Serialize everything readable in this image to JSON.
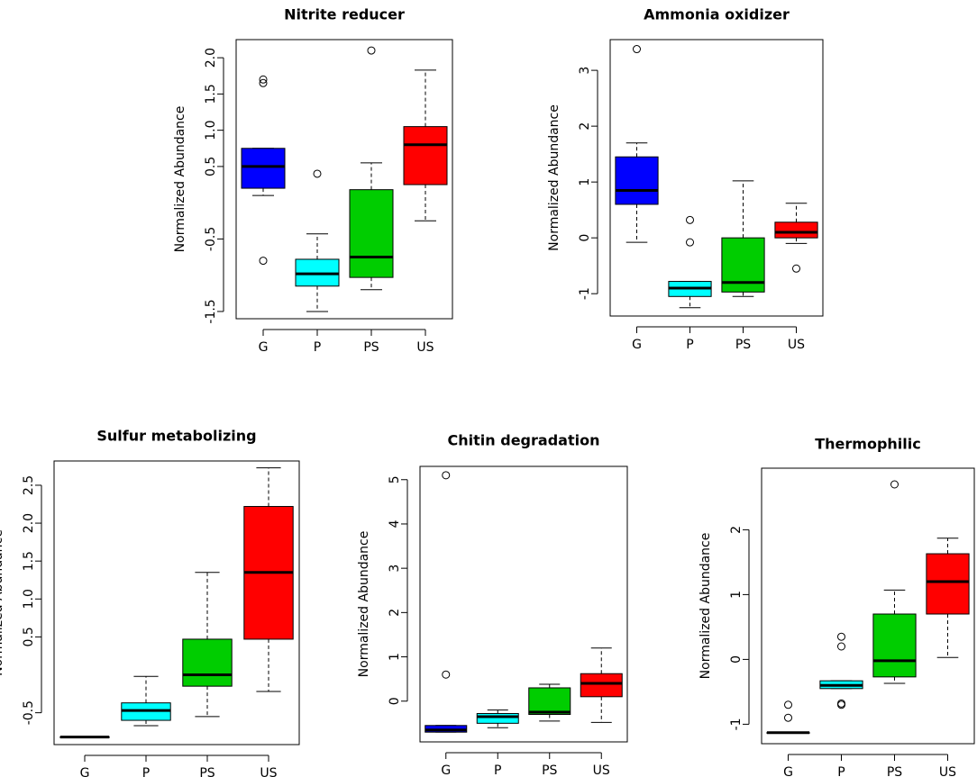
{
  "figure": {
    "ylabel": "Normalized Abundance",
    "groups": [
      "G",
      "P",
      "PS",
      "US"
    ],
    "group_colors": [
      "#0000ff",
      "#00ffff",
      "#00cd00",
      "#ff0000"
    ]
  },
  "chart_data": [
    {
      "type": "boxplot",
      "title": "Nitrite reducer",
      "ylabel": "Normalized Abundance",
      "categories": [
        "G",
        "P",
        "PS",
        "US"
      ],
      "yticks": [
        -1.5,
        -0.5,
        0.5,
        1.0,
        1.5,
        2.0
      ],
      "ytick_labels": [
        "-1.5",
        "-0.5",
        "0.5",
        "1.0",
        "1.5",
        "2.0"
      ],
      "ylim": [
        -1.6,
        2.25
      ],
      "boxes": [
        {
          "name": "G",
          "lower_whisker": 0.1,
          "q1": 0.2,
          "median": 0.5,
          "q3": 0.75,
          "upper_whisker": 0.75,
          "outliers": [
            1.65,
            1.7,
            -0.8
          ]
        },
        {
          "name": "P",
          "lower_whisker": -1.5,
          "q1": -1.15,
          "median": -0.98,
          "q3": -0.78,
          "upper_whisker": -0.43,
          "outliers": [
            0.4
          ]
        },
        {
          "name": "PS",
          "lower_whisker": -1.2,
          "q1": -1.03,
          "median": -0.75,
          "q3": 0.18,
          "upper_whisker": 0.55,
          "outliers": [
            2.1
          ]
        },
        {
          "name": "US",
          "lower_whisker": -0.25,
          "q1": 0.25,
          "median": 0.8,
          "q3": 1.05,
          "upper_whisker": 1.83,
          "outliers": []
        }
      ]
    },
    {
      "type": "boxplot",
      "title": "Ammonia oxidizer",
      "ylabel": "Normalized Abundance",
      "categories": [
        "G",
        "P",
        "PS",
        "US"
      ],
      "yticks": [
        -1,
        0,
        1,
        2,
        3
      ],
      "ytick_labels": [
        "-1",
        "0",
        "1",
        "2",
        "3"
      ],
      "ylim": [
        -1.4,
        3.55
      ],
      "boxes": [
        {
          "name": "G",
          "lower_whisker": -0.08,
          "q1": 0.6,
          "median": 0.85,
          "q3": 1.45,
          "upper_whisker": 1.7,
          "outliers": [
            3.38
          ]
        },
        {
          "name": "P",
          "lower_whisker": -1.25,
          "q1": -1.05,
          "median": -0.9,
          "q3": -0.78,
          "upper_whisker": -0.78,
          "outliers": [
            0.32,
            -0.08
          ]
        },
        {
          "name": "PS",
          "lower_whisker": -1.05,
          "q1": -0.97,
          "median": -0.8,
          "q3": 0.0,
          "upper_whisker": 1.02,
          "outliers": []
        },
        {
          "name": "US",
          "lower_whisker": -0.1,
          "q1": 0.0,
          "median": 0.1,
          "q3": 0.28,
          "upper_whisker": 0.62,
          "outliers": [
            -0.55
          ]
        }
      ]
    },
    {
      "type": "boxplot",
      "title": "Sulfur metabolizing",
      "ylabel": "Normalized Abundance",
      "categories": [
        "G",
        "P",
        "PS",
        "US"
      ],
      "yticks": [
        -0.5,
        0.5,
        1.0,
        1.5,
        2.0,
        2.5
      ],
      "ytick_labels": [
        "-0.5",
        "0.5",
        "1.0",
        "1.5",
        "2.0",
        "2.5"
      ],
      "ylim": [
        -0.92,
        2.82
      ],
      "boxes": [
        {
          "name": "G",
          "lower_whisker": -0.82,
          "q1": -0.82,
          "median": -0.82,
          "q3": -0.82,
          "upper_whisker": -0.82,
          "outliers": []
        },
        {
          "name": "P",
          "lower_whisker": -0.67,
          "q1": -0.6,
          "median": -0.47,
          "q3": -0.37,
          "upper_whisker": -0.02,
          "outliers": []
        },
        {
          "name": "PS",
          "lower_whisker": -0.55,
          "q1": -0.15,
          "median": 0.0,
          "q3": 0.47,
          "upper_whisker": 1.35,
          "outliers": []
        },
        {
          "name": "US",
          "lower_whisker": -0.22,
          "q1": 0.47,
          "median": 1.35,
          "q3": 2.22,
          "upper_whisker": 2.73,
          "outliers": []
        }
      ]
    },
    {
      "type": "boxplot",
      "title": "Chitin degradation",
      "ylabel": "Normalized Abundance",
      "categories": [
        "G",
        "P",
        "PS",
        "US"
      ],
      "yticks": [
        0,
        1,
        2,
        3,
        4,
        5
      ],
      "ytick_labels": [
        "0",
        "1",
        "2",
        "3",
        "4",
        "5"
      ],
      "ylim": [
        -0.92,
        5.3
      ],
      "boxes": [
        {
          "name": "G",
          "lower_whisker": -0.7,
          "q1": -0.7,
          "median": -0.65,
          "q3": -0.55,
          "upper_whisker": -0.55,
          "outliers": [
            5.1,
            0.6
          ]
        },
        {
          "name": "P",
          "lower_whisker": -0.6,
          "q1": -0.5,
          "median": -0.35,
          "q3": -0.28,
          "upper_whisker": -0.2,
          "outliers": []
        },
        {
          "name": "PS",
          "lower_whisker": -0.45,
          "q1": -0.3,
          "median": -0.25,
          "q3": 0.3,
          "upper_whisker": 0.38,
          "outliers": []
        },
        {
          "name": "US",
          "lower_whisker": -0.48,
          "q1": 0.1,
          "median": 0.4,
          "q3": 0.62,
          "upper_whisker": 1.2,
          "outliers": []
        }
      ]
    },
    {
      "type": "boxplot",
      "title": "Thermophilic",
      "ylabel": "Normalized Abundance",
      "categories": [
        "G",
        "P",
        "PS",
        "US"
      ],
      "yticks": [
        -1,
        0,
        1,
        2
      ],
      "ytick_labels": [
        "-1",
        "0",
        "1",
        "2"
      ],
      "ylim": [
        -1.3,
        2.95
      ],
      "boxes": [
        {
          "name": "G",
          "lower_whisker": -1.13,
          "q1": -1.13,
          "median": -1.13,
          "q3": -1.13,
          "upper_whisker": -1.13,
          "outliers": [
            -0.7,
            -0.9
          ]
        },
        {
          "name": "P",
          "lower_whisker": -0.45,
          "q1": -0.45,
          "median": -0.4,
          "q3": -0.33,
          "upper_whisker": -0.33,
          "outliers": [
            0.35,
            0.2,
            -0.68,
            -0.7
          ]
        },
        {
          "name": "PS",
          "lower_whisker": -0.37,
          "q1": -0.27,
          "median": -0.02,
          "q3": 0.7,
          "upper_whisker": 1.07,
          "outliers": [
            2.7
          ]
        },
        {
          "name": "US",
          "lower_whisker": 0.03,
          "q1": 0.7,
          "median": 1.2,
          "q3": 1.63,
          "upper_whisker": 1.87,
          "outliers": []
        }
      ]
    }
  ]
}
